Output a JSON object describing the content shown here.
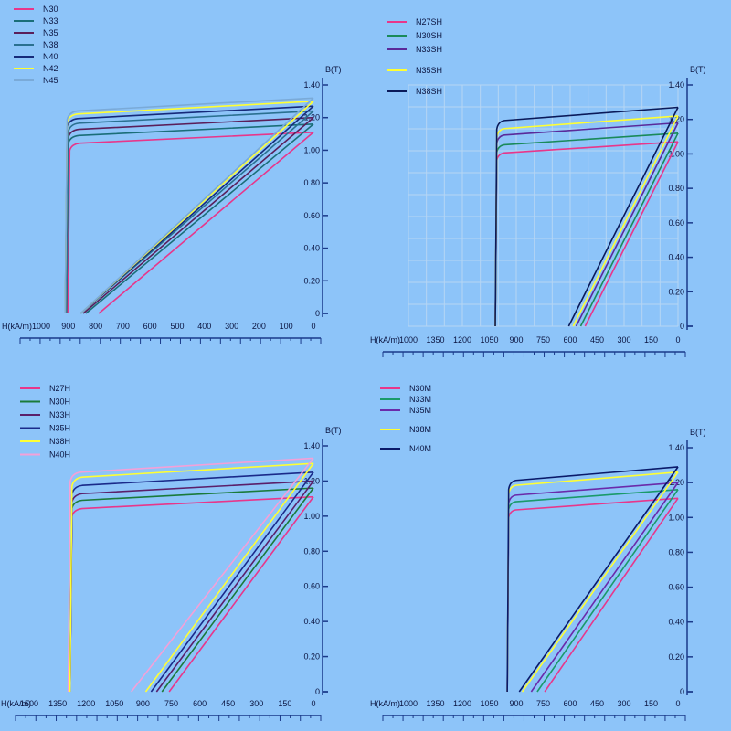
{
  "chart_data": [
    {
      "type": "line",
      "x_axis_label": "H(kA/m)",
      "y_axis_label": "B(T)",
      "x_ticks": [
        "1000",
        "900",
        "800",
        "700",
        "600",
        "500",
        "400",
        "300",
        "200",
        "100",
        "0"
      ],
      "y_ticks": [
        "0",
        "0.20",
        "0.40",
        "0.60",
        "0.80",
        "1.00",
        "1.20",
        "1.40"
      ],
      "xlim": [
        1000,
        0
      ],
      "ylim": [
        0,
        1.4
      ],
      "grid": false,
      "legend_position": "top-left",
      "series": [
        {
          "name": "N30",
          "color": "#e8368a",
          "br": 1.11,
          "hcb": 830,
          "hcj": 950
        },
        {
          "name": "N33",
          "color": "#1a6e78",
          "br": 1.16,
          "hcb": 880,
          "hcj": 955
        },
        {
          "name": "N35",
          "color": "#5a1f5a",
          "br": 1.2,
          "hcb": 890,
          "hcj": 955
        },
        {
          "name": "N38",
          "color": "#2a7090",
          "br": 1.24,
          "hcb": 900,
          "hcj": 955
        },
        {
          "name": "N40",
          "color": "#162a7a",
          "br": 1.27,
          "hcb": 900,
          "hcj": 960
        },
        {
          "name": "N42",
          "color": "#ffff33",
          "br": 1.3,
          "hcb": 900,
          "hcj": 960
        },
        {
          "name": "N45",
          "color": "#7aaad8",
          "br": 1.32,
          "hcb": 900,
          "hcj": 960
        }
      ]
    },
    {
      "type": "line",
      "x_axis_label": "H(kA/m)",
      "y_axis_label": "B(T)",
      "x_ticks": [
        "1000",
        "1350",
        "1200",
        "1050",
        "900",
        "750",
        "600",
        "450",
        "300",
        "150",
        "0"
      ],
      "y_ticks": [
        "0",
        "0.20",
        "0.40",
        "0.60",
        "0.80",
        "1.00",
        "1.20",
        "1.40"
      ],
      "xlim": [
        1800,
        0
      ],
      "ylim": [
        0,
        1.4
      ],
      "grid": true,
      "legend_position": "top-left",
      "series": [
        {
          "name": "N27SH",
          "color": "#e8368a",
          "br": 1.07,
          "hcb": 620,
          "hcj": 1220
        },
        {
          "name": "N30SH",
          "color": "#1a8a5a",
          "br": 1.12,
          "hcb": 650,
          "hcj": 1220
        },
        {
          "name": "N33SH",
          "color": "#5a2a9a",
          "br": 1.18,
          "hcb": 680,
          "hcj": 1220
        },
        {
          "name": "N35SH",
          "color": "#ffff33",
          "br": 1.22,
          "hcb": 700,
          "hcj": 1220
        },
        {
          "name": "N38SH",
          "color": "#0a1a5a",
          "br": 1.27,
          "hcb": 730,
          "hcj": 1220
        }
      ]
    },
    {
      "type": "line",
      "x_axis_label": "H(kA/m)",
      "y_axis_label": "B(T)",
      "x_ticks": [
        "1500",
        "1350",
        "1200",
        "1050",
        "900",
        "750",
        "600",
        "450",
        "300",
        "150",
        "0"
      ],
      "y_ticks": [
        "0",
        "0.20",
        "0.40",
        "0.60",
        "0.80",
        "1.00",
        "1.20",
        "1.40"
      ],
      "xlim": [
        1500,
        0
      ],
      "ylim": [
        0,
        1.4
      ],
      "grid": false,
      "legend_position": "top-left",
      "series": [
        {
          "name": "N27H",
          "color": "#e8368a",
          "br": 1.11,
          "hcb": 800,
          "hcj": 1350
        },
        {
          "name": "N30H",
          "color": "#1a7a3a",
          "br": 1.16,
          "hcb": 840,
          "hcj": 1350
        },
        {
          "name": "N33H",
          "color": "#5a1f6a",
          "br": 1.2,
          "hcb": 870,
          "hcj": 1350
        },
        {
          "name": "N35H",
          "color": "#1a2a8a",
          "br": 1.25,
          "hcb": 900,
          "hcj": 1350
        },
        {
          "name": "N38H",
          "color": "#ffff33",
          "br": 1.3,
          "hcb": 930,
          "hcj": 1350
        },
        {
          "name": "N40H",
          "color": "#f4a0d8",
          "br": 1.33,
          "hcb": 1010,
          "hcj": 1360
        }
      ]
    },
    {
      "type": "line",
      "x_axis_label": "H(kA/m)",
      "y_axis_label": "B(T)",
      "x_ticks": [
        "1000",
        "1350",
        "1200",
        "1050",
        "900",
        "750",
        "600",
        "450",
        "300",
        "150",
        "0"
      ],
      "y_ticks": [
        "0",
        "0.20",
        "0.40",
        "0.60",
        "0.80",
        "1.00",
        "1.20",
        "1.40"
      ],
      "xlim": [
        1800,
        0
      ],
      "ylim": [
        0,
        1.4
      ],
      "grid": false,
      "legend_position": "top-left",
      "series": [
        {
          "name": "N30M",
          "color": "#e8368a",
          "br": 1.11,
          "hcb": 890,
          "hcj": 1140
        },
        {
          "name": "N33M",
          "color": "#1a9a6a",
          "br": 1.16,
          "hcb": 940,
          "hcj": 1140
        },
        {
          "name": "N35M",
          "color": "#6a2aaa",
          "br": 1.2,
          "hcb": 980,
          "hcj": 1140
        },
        {
          "name": "N38M",
          "color": "#ffff33",
          "br": 1.26,
          "hcb": 1040,
          "hcj": 1140
        },
        {
          "name": "N40M",
          "color": "#0a1a6a",
          "br": 1.29,
          "hcb": 1060,
          "hcj": 1140
        }
      ]
    }
  ]
}
